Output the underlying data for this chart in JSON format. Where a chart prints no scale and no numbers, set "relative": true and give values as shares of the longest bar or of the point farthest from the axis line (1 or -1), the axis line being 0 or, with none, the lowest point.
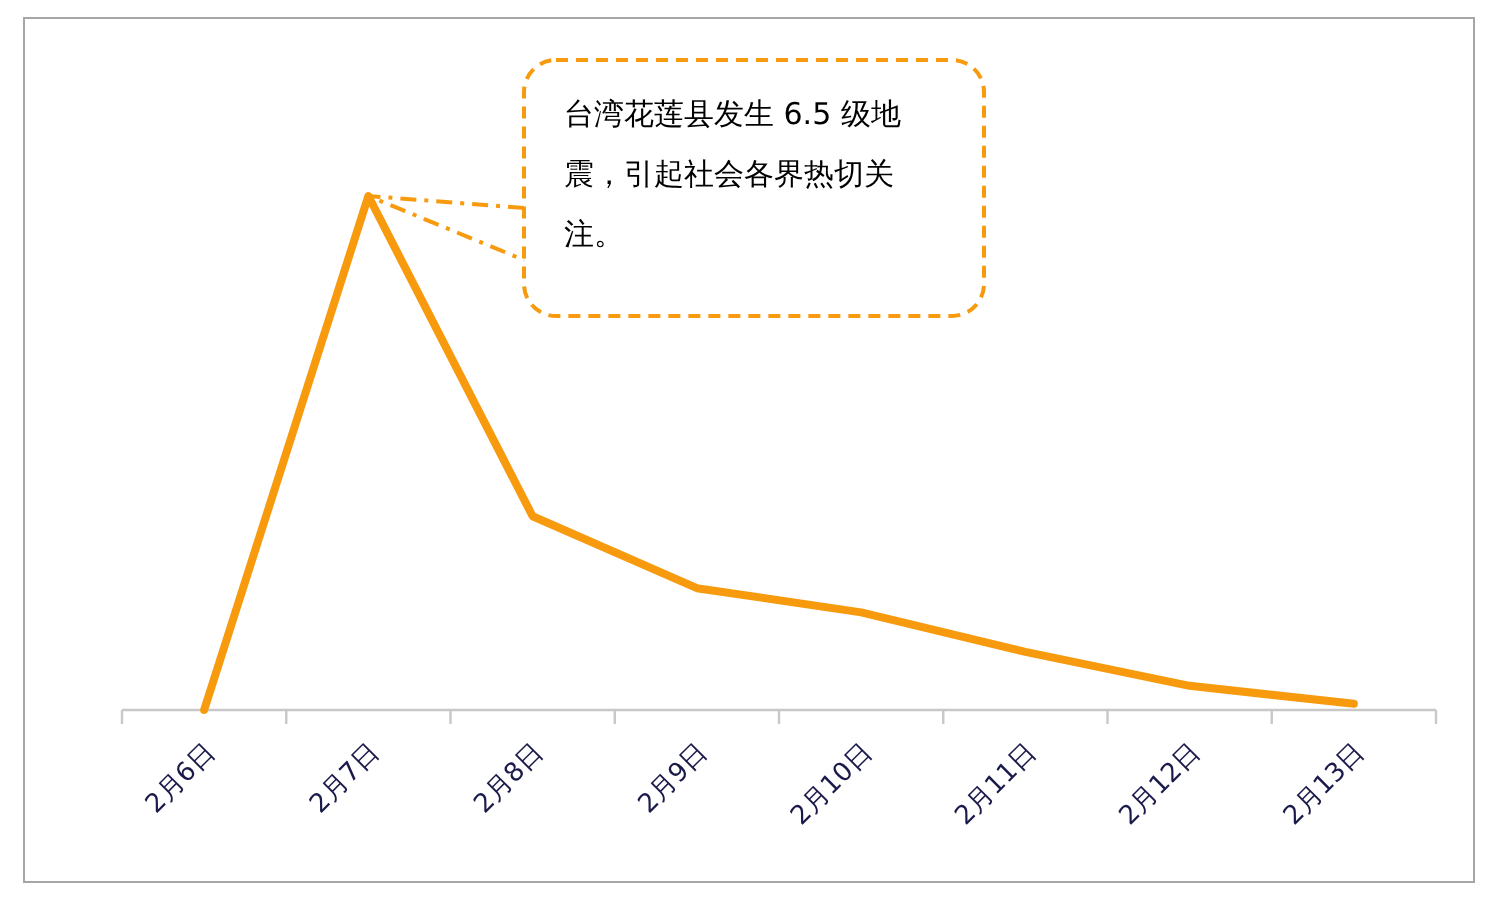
{
  "chart_data": {
    "type": "line",
    "relative": true,
    "categories": [
      "2月6日",
      "2月7日",
      "2月8日",
      "2月9日",
      "2月10日",
      "2月11日",
      "2月12日",
      "2月13日"
    ],
    "series": [
      {
        "color": "#f79a0e",
        "values": [
          0,
          1,
          0.377,
          0.237,
          0.19,
          0.113,
          0.047,
          0.012
        ]
      }
    ],
    "annotations": [
      "台湾花莲县发生 6.5 级地震，引起社会各界热切关注。"
    ],
    "marker": "none",
    "line_style": "solid"
  }
}
